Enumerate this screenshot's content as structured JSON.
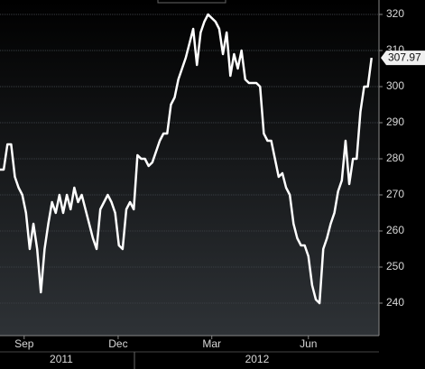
{
  "chart_data": {
    "type": "line",
    "values": [
      277,
      277,
      284,
      284,
      275,
      272,
      270,
      265,
      255,
      262,
      255,
      243,
      255,
      262,
      268,
      265,
      270,
      265,
      270,
      266,
      272,
      268,
      270,
      266,
      262,
      258,
      255,
      266,
      268,
      270,
      268,
      265,
      256,
      255,
      266,
      268,
      266,
      281,
      280,
      280,
      278,
      279,
      282,
      285,
      287,
      287,
      295,
      297,
      302,
      305,
      308,
      312,
      316,
      306,
      315,
      318,
      320,
      319,
      318,
      316,
      309,
      315,
      303,
      309,
      305,
      310,
      302,
      301,
      301,
      301,
      300,
      287,
      285,
      285,
      280,
      275,
      276,
      272,
      270,
      262,
      258,
      256,
      256,
      253,
      245,
      241,
      240,
      255,
      258,
      262,
      265,
      271,
      274,
      285,
      273,
      280,
      280,
      293,
      300,
      300,
      307.97
    ],
    "color": "#ffffff",
    "xlim": [
      0,
      102
    ],
    "xticks": [
      {
        "value": 6.5,
        "label": "Sep"
      },
      {
        "value": 31.8,
        "label": "Dec"
      },
      {
        "value": 57,
        "label": "Mar"
      },
      {
        "value": 83,
        "label": "Jun"
      }
    ],
    "year_labels": [
      {
        "value": 16.5,
        "label": "2011"
      },
      {
        "value": 69.2,
        "label": "2012"
      }
    ],
    "ylim": [
      231,
      324
    ],
    "yticks": [
      240,
      250,
      260,
      270,
      280,
      290,
      300,
      310,
      320
    ],
    "grid": true
  }
}
